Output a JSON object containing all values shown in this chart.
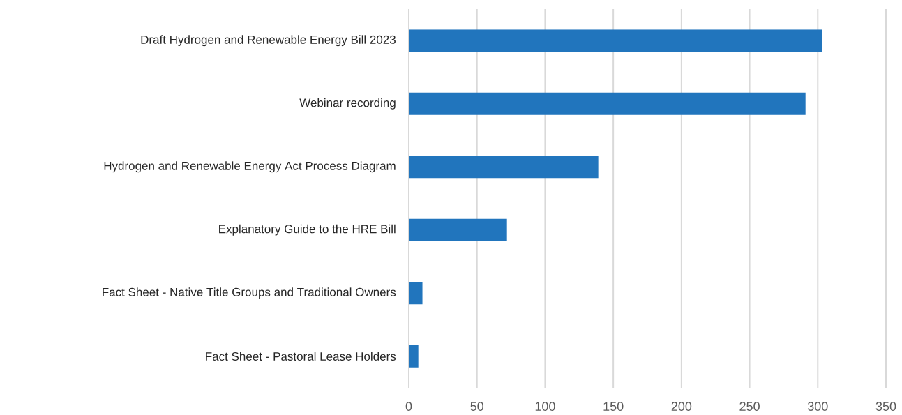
{
  "chart_data": {
    "type": "bar",
    "orientation": "horizontal",
    "categories": [
      "Draft Hydrogen and Renewable Energy Bill 2023",
      "Webinar recording",
      "Hydrogen and Renewable Energy Act Process Diagram",
      "Explanatory Guide to the HRE Bill",
      "Fact Sheet - Native Title Groups and Traditional Owners",
      "Fact Sheet - Pastoral Lease Holders"
    ],
    "values": [
      303,
      291,
      139,
      72,
      10,
      7
    ],
    "color": "#2175bd",
    "xlim": [
      0,
      350
    ],
    "xticks": [
      0,
      50,
      100,
      150,
      200,
      250,
      300,
      350
    ],
    "grid": "x"
  }
}
